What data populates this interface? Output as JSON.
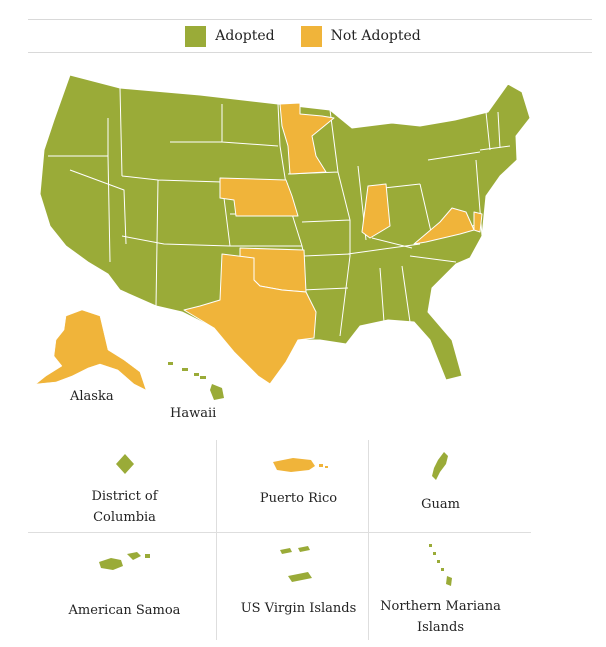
{
  "legend": {
    "adopted_label": "Adopted",
    "not_adopted_label": "Not Adopted"
  },
  "colors": {
    "adopted": "#9aab38",
    "not_adopted": "#f0b43a",
    "border": "#ffffff"
  },
  "map_labels": {
    "alaska": "Alaska",
    "hawaii": "Hawaii"
  },
  "territories": [
    {
      "name": "District of Columbia",
      "line1": "District of",
      "line2": "Columbia",
      "status": "adopted"
    },
    {
      "name": "Puerto Rico",
      "line1": "Puerto Rico",
      "line2": "",
      "status": "not_adopted"
    },
    {
      "name": "Guam",
      "line1": "Guam",
      "line2": "",
      "status": "adopted"
    },
    {
      "name": "American Samoa",
      "line1": "American Samoa",
      "line2": "",
      "status": "adopted"
    },
    {
      "name": "US Virgin Islands",
      "line1": "US Virgin Islands",
      "line2": "",
      "status": "adopted"
    },
    {
      "name": "Northern Mariana Islands",
      "line1": "Northern Mariana",
      "line2": "Islands",
      "status": "adopted"
    }
  ],
  "not_adopted_states": [
    "Minnesota",
    "Nebraska",
    "Oklahoma",
    "Texas",
    "Indiana",
    "Virginia",
    "Alaska",
    "Puerto Rico"
  ]
}
